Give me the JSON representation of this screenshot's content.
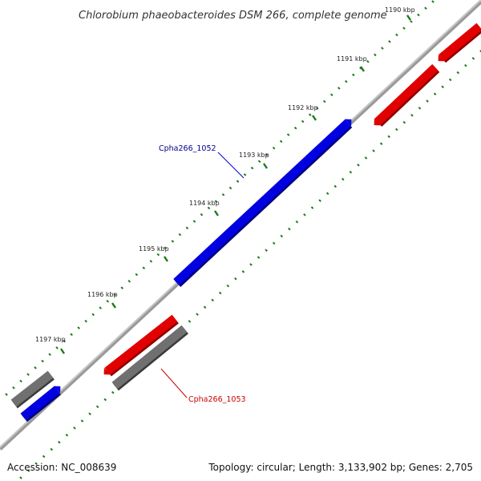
{
  "title": "Chlorobium phaeobacteroides DSM 266, complete genome",
  "footer": {
    "accession": "Accession: NC_008639",
    "topology": "Topology: circular; Length: 3,133,902 bp; Genes: 2,705"
  },
  "colors": {
    "forward": "#e00000",
    "reverse": "#0000e0",
    "other": "#707070",
    "backbone": "#888888",
    "ticks": "#1a7a1a"
  },
  "ticks": [
    {
      "label": "1190 kbp"
    },
    {
      "label": "1191 kbp"
    },
    {
      "label": "1192 kbp"
    },
    {
      "label": "1193 kbp"
    },
    {
      "label": "1194 kbp"
    },
    {
      "label": "1195 kbp"
    },
    {
      "label": "1196 kbp"
    },
    {
      "label": "1197 kbp"
    }
  ],
  "gene_labels": [
    {
      "text": "Cpha266_1052",
      "color": "#00008b"
    },
    {
      "text": "Cpha266_1053",
      "color": "#cc0000"
    }
  ]
}
